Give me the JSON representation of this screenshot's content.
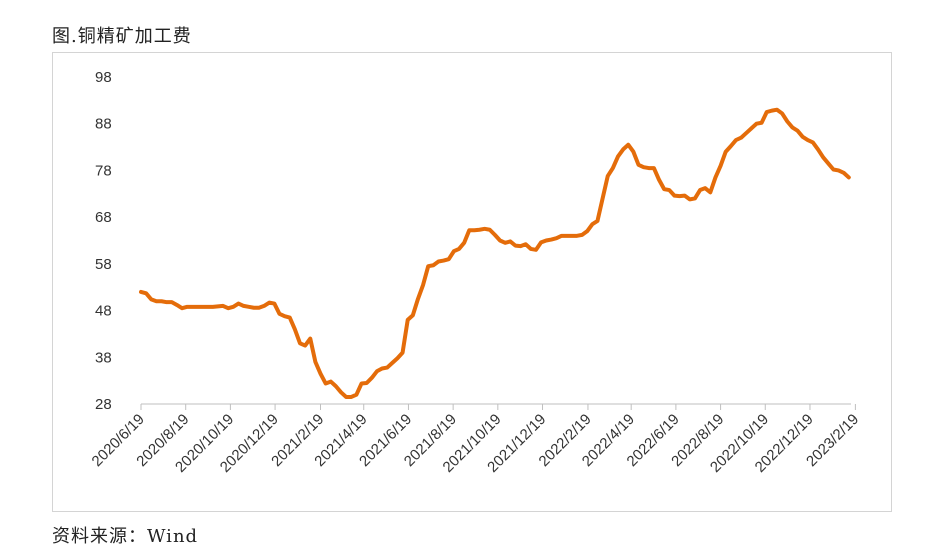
{
  "header": {
    "title": "图.铜精矿加工费"
  },
  "footer": {
    "source": "资料来源：Wind"
  },
  "chart_data": {
    "type": "line",
    "title": "图.铜精矿加工费",
    "xlabel": "",
    "ylabel": "",
    "ylim": [
      28,
      98
    ],
    "y_ticks": [
      "98",
      "88",
      "78",
      "68",
      "58",
      "48",
      "38",
      "28"
    ],
    "x_ticks": [
      "2020/6/19",
      "2020/8/19",
      "2020/10/19",
      "2020/12/19",
      "2021/2/19",
      "2021/4/19",
      "2021/6/19",
      "2021/8/19",
      "2021/10/19",
      "2021/12/19",
      "2022/2/19",
      "2022/4/19",
      "2022/6/19",
      "2022/8/19",
      "2022/10/19",
      "2022/12/19",
      "2023/2/19"
    ],
    "grid": false,
    "legend": "none",
    "color": "#e46c0a",
    "series": [
      {
        "points": [
          [
            "2020-06-19",
            52
          ],
          [
            "2020-06-26",
            51.7
          ],
          [
            "2020-07-03",
            50.4
          ],
          [
            "2020-07-10",
            50
          ],
          [
            "2020-07-17",
            50
          ],
          [
            "2020-07-24",
            49.8
          ],
          [
            "2020-07-31",
            49.8
          ],
          [
            "2020-08-07",
            49.2
          ],
          [
            "2020-08-14",
            48.5
          ],
          [
            "2020-08-21",
            48.8
          ],
          [
            "2020-08-28",
            48.8
          ],
          [
            "2020-09-04",
            48.8
          ],
          [
            "2020-09-11",
            48.8
          ],
          [
            "2020-09-18",
            48.8
          ],
          [
            "2020-09-25",
            48.8
          ],
          [
            "2020-10-09",
            49
          ],
          [
            "2020-10-16",
            48.5
          ],
          [
            "2020-10-23",
            48.8
          ],
          [
            "2020-10-30",
            49.5
          ],
          [
            "2020-11-06",
            49
          ],
          [
            "2020-11-13",
            48.8
          ],
          [
            "2020-11-20",
            48.6
          ],
          [
            "2020-11-27",
            48.6
          ],
          [
            "2020-12-04",
            49
          ],
          [
            "2020-12-11",
            49.7
          ],
          [
            "2020-12-18",
            49.5
          ],
          [
            "2020-12-25",
            47.3
          ],
          [
            "2021-01-01",
            46.8
          ],
          [
            "2021-01-08",
            46.5
          ],
          [
            "2021-01-15",
            44
          ],
          [
            "2021-01-22",
            41
          ],
          [
            "2021-01-29",
            40.5
          ],
          [
            "2021-02-05",
            42
          ],
          [
            "2021-02-12",
            37
          ],
          [
            "2021-02-19",
            34.5
          ],
          [
            "2021-02-26",
            32.4
          ],
          [
            "2021-03-05",
            32.8
          ],
          [
            "2021-03-12",
            31.8
          ],
          [
            "2021-03-19",
            30.5
          ],
          [
            "2021-03-26",
            29.5
          ],
          [
            "2021-04-02",
            29.5
          ],
          [
            "2021-04-09",
            30
          ],
          [
            "2021-04-16",
            32.4
          ],
          [
            "2021-04-23",
            32.5
          ],
          [
            "2021-04-30",
            33.6
          ],
          [
            "2021-05-07",
            35
          ],
          [
            "2021-05-14",
            35.6
          ],
          [
            "2021-05-21",
            35.8
          ],
          [
            "2021-05-28",
            36.8
          ],
          [
            "2021-06-04",
            37.8
          ],
          [
            "2021-06-11",
            39
          ],
          [
            "2021-06-18",
            46
          ],
          [
            "2021-06-25",
            47
          ],
          [
            "2021-07-02",
            50.5
          ],
          [
            "2021-07-09",
            53.5
          ],
          [
            "2021-07-16",
            57.5
          ],
          [
            "2021-07-23",
            57.7
          ],
          [
            "2021-07-30",
            58.5
          ],
          [
            "2021-08-06",
            58.7
          ],
          [
            "2021-08-13",
            59
          ],
          [
            "2021-08-20",
            60.7
          ],
          [
            "2021-08-27",
            61.2
          ],
          [
            "2021-09-03",
            62.5
          ],
          [
            "2021-09-10",
            65.2
          ],
          [
            "2021-09-17",
            65.2
          ],
          [
            "2021-09-24",
            65.3
          ],
          [
            "2021-10-01",
            65.5
          ],
          [
            "2021-10-08",
            65.3
          ],
          [
            "2021-10-15",
            64.2
          ],
          [
            "2021-10-22",
            63
          ],
          [
            "2021-10-29",
            62.5
          ],
          [
            "2021-11-05",
            62.8
          ],
          [
            "2021-11-12",
            61.9
          ],
          [
            "2021-11-19",
            61.8
          ],
          [
            "2021-11-26",
            62.2
          ],
          [
            "2021-12-03",
            61.2
          ],
          [
            "2021-12-10",
            61
          ],
          [
            "2021-12-17",
            62.6
          ],
          [
            "2021-12-24",
            63
          ],
          [
            "2021-12-31",
            63.2
          ],
          [
            "2022-01-07",
            63.5
          ],
          [
            "2022-01-14",
            64
          ],
          [
            "2022-01-21",
            64
          ],
          [
            "2022-01-28",
            64
          ],
          [
            "2022-02-04",
            64
          ],
          [
            "2022-02-11",
            64.2
          ],
          [
            "2022-02-18",
            65
          ],
          [
            "2022-02-25",
            66.5
          ],
          [
            "2022-03-04",
            67.2
          ],
          [
            "2022-03-11",
            72
          ],
          [
            "2022-03-18",
            76.8
          ],
          [
            "2022-03-25",
            78.5
          ],
          [
            "2022-04-01",
            81
          ],
          [
            "2022-04-08",
            82.5
          ],
          [
            "2022-04-15",
            83.5
          ],
          [
            "2022-04-22",
            82
          ],
          [
            "2022-04-29",
            79.2
          ],
          [
            "2022-05-06",
            78.7
          ],
          [
            "2022-05-13",
            78.5
          ],
          [
            "2022-05-20",
            78.5
          ],
          [
            "2022-05-27",
            76
          ],
          [
            "2022-06-03",
            74
          ],
          [
            "2022-06-10",
            73.8
          ],
          [
            "2022-06-17",
            72.6
          ],
          [
            "2022-06-24",
            72.5
          ],
          [
            "2022-07-01",
            72.6
          ],
          [
            "2022-07-08",
            71.8
          ],
          [
            "2022-07-15",
            72
          ],
          [
            "2022-07-22",
            73.8
          ],
          [
            "2022-07-29",
            74.2
          ],
          [
            "2022-08-05",
            73.3
          ],
          [
            "2022-08-12",
            76.5
          ],
          [
            "2022-08-19",
            79
          ],
          [
            "2022-08-26",
            82
          ],
          [
            "2022-09-02",
            83.2
          ],
          [
            "2022-09-09",
            84.5
          ],
          [
            "2022-09-16",
            85
          ],
          [
            "2022-09-23",
            86
          ],
          [
            "2022-09-30",
            87
          ],
          [
            "2022-10-07",
            88
          ],
          [
            "2022-10-14",
            88.2
          ],
          [
            "2022-10-21",
            90.5
          ],
          [
            "2022-10-28",
            90.8
          ],
          [
            "2022-11-04",
            91
          ],
          [
            "2022-11-11",
            90.2
          ],
          [
            "2022-11-18",
            88.5
          ],
          [
            "2022-11-25",
            87.2
          ],
          [
            "2022-12-02",
            86.5
          ],
          [
            "2022-12-09",
            85.2
          ],
          [
            "2022-12-16",
            84.5
          ],
          [
            "2022-12-23",
            84
          ],
          [
            "2022-12-30",
            82.5
          ],
          [
            "2023-01-06",
            80.8
          ],
          [
            "2023-01-13",
            79.5
          ],
          [
            "2023-01-20",
            78.2
          ],
          [
            "2023-01-27",
            78
          ],
          [
            "2023-02-03",
            77.5
          ],
          [
            "2023-02-10",
            76.5
          ]
        ]
      }
    ]
  }
}
